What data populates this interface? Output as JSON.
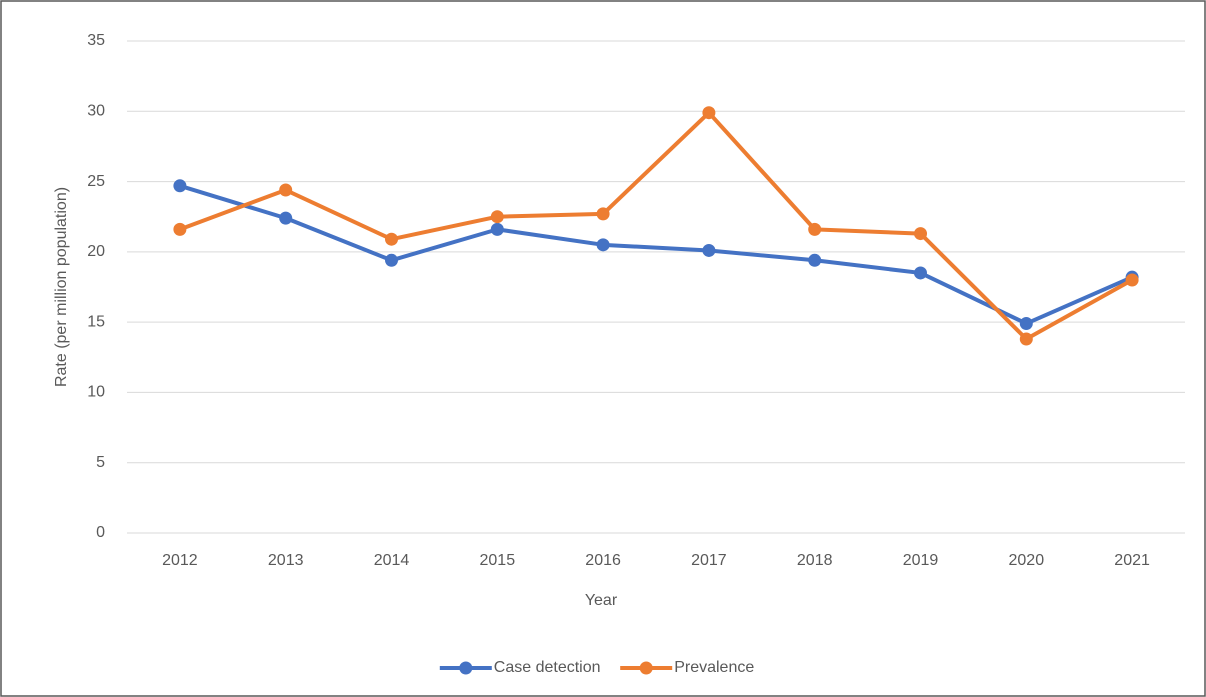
{
  "chart_data": {
    "type": "line",
    "x_label": "Year",
    "y_label": "Rate (per million population)",
    "categories": [
      "2012",
      "2013",
      "2014",
      "2015",
      "2016",
      "2017",
      "2018",
      "2019",
      "2020",
      "2021"
    ],
    "series": [
      {
        "name": "Case detection",
        "color": "#4472c4",
        "values": [
          24.7,
          22.4,
          19.4,
          21.6,
          20.5,
          20.1,
          19.4,
          18.5,
          14.9,
          18.2
        ]
      },
      {
        "name": "Prevalence",
        "color": "#ed7d31",
        "values": [
          21.6,
          24.4,
          20.9,
          22.5,
          22.7,
          29.9,
          21.6,
          21.3,
          13.8,
          18.0
        ]
      }
    ],
    "ylim": [
      0,
      35
    ],
    "yticks": [
      0,
      5,
      10,
      15,
      20,
      25,
      30,
      35
    ],
    "grid": true,
    "legend": "bottom"
  }
}
